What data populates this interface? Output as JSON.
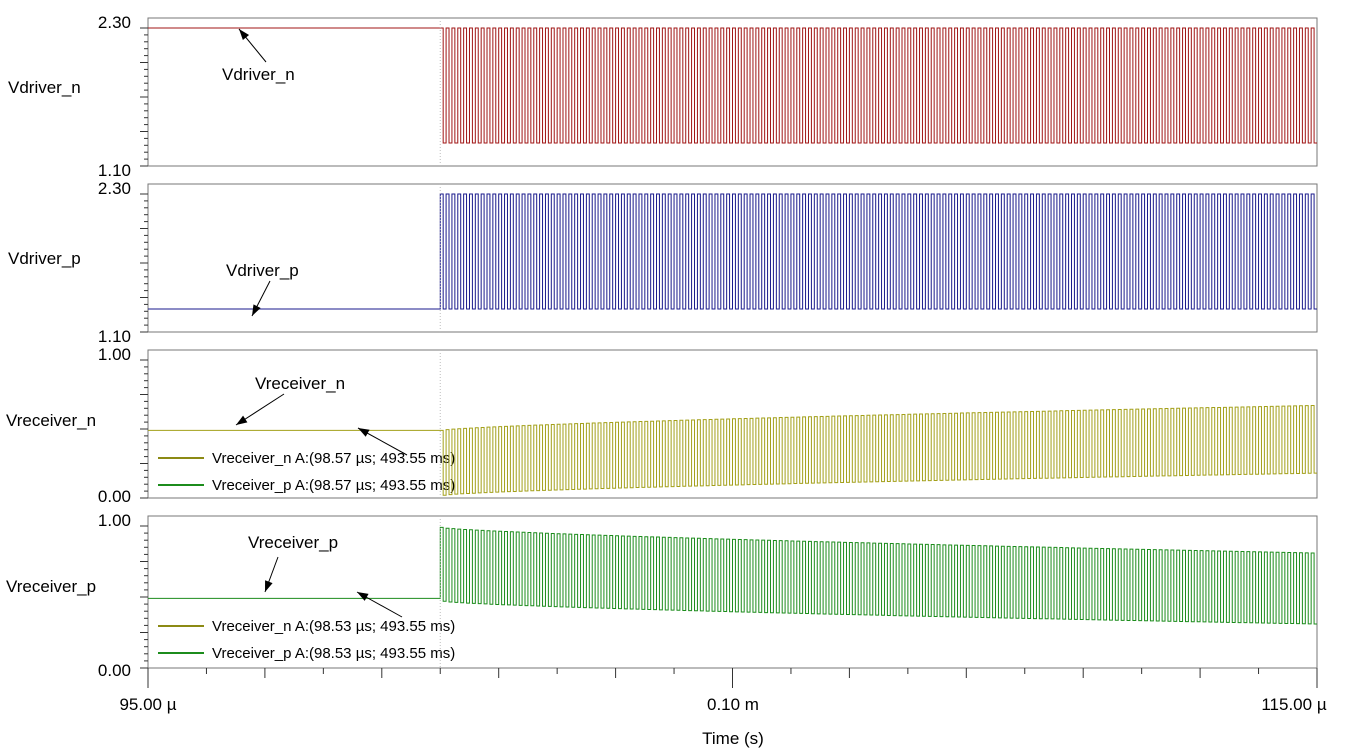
{
  "chart_data": {
    "type": "line",
    "xlabel": "Time (s)",
    "x_ticks": [
      "95.00 µ",
      "0.10 m",
      "115.00 µ"
    ],
    "xlim_us": [
      95.0,
      115.0
    ],
    "panels": [
      {
        "ylabel": "Vdriver_n",
        "ylim": [
          1.1,
          2.3
        ],
        "ytick_labels": [
          "2.30",
          "1.10"
        ],
        "color": "#a01515",
        "series": [
          {
            "name": "Vdriver_n",
            "initial": 2.3,
            "switch_start_us": 100.0,
            "high": 2.3,
            "low": 1.3,
            "period_us": 0.1
          }
        ],
        "annotations": [
          {
            "text": "Vdriver_n"
          }
        ],
        "legend": []
      },
      {
        "ylabel": "Vdriver_p",
        "ylim": [
          1.1,
          2.3
        ],
        "ytick_labels": [
          "2.30",
          "1.10"
        ],
        "color": "#1a1a8c",
        "series": [
          {
            "name": "Vdriver_p",
            "initial": 1.3,
            "switch_start_us": 100.0,
            "high": 2.3,
            "low": 1.3,
            "period_us": 0.1
          }
        ],
        "annotations": [
          {
            "text": "Vdriver_p"
          }
        ],
        "legend": []
      },
      {
        "ylabel": "Vreceiver_n",
        "ylim": [
          0.0,
          1.0
        ],
        "ytick_labels": [
          "1.00",
          "0.00"
        ],
        "color": "#a3a01a",
        "series": [
          {
            "name": "Vreceiver_n",
            "initial": 0.49,
            "switch_start_us": 100.0,
            "high_start": 0.49,
            "high_end": 0.67,
            "low_start": 0.02,
            "low_end": 0.18,
            "period_us": 0.1
          }
        ],
        "annotations": [
          {
            "text": "Vreceiver_n"
          }
        ],
        "legend": [
          {
            "text": "Vreceiver_n A:(98.57 µs; 493.55 ms)",
            "color": "#8c8a14"
          },
          {
            "text": "Vreceiver_p A:(98.57 µs; 493.55 ms)",
            "color": "#1c8c1c"
          }
        ]
      },
      {
        "ylabel": "Vreceiver_p",
        "ylim": [
          0.0,
          1.0
        ],
        "ytick_labels": [
          "1.00",
          "0.00"
        ],
        "color": "#1c8c1c",
        "series": [
          {
            "name": "Vreceiver_p",
            "initial": 0.49,
            "switch_start_us": 100.0,
            "high_start": 0.99,
            "high_end": 0.81,
            "low_start": 0.47,
            "low_end": 0.31,
            "period_us": 0.1
          }
        ],
        "annotations": [
          {
            "text": "Vreceiver_p"
          }
        ],
        "legend": [
          {
            "text": "Vreceiver_n A:(98.53 µs; 493.55 ms)",
            "color": "#8c8a14"
          },
          {
            "text": "Vreceiver_p A:(98.53 µs; 493.55 ms)",
            "color": "#1c8c1c"
          }
        ]
      }
    ]
  }
}
